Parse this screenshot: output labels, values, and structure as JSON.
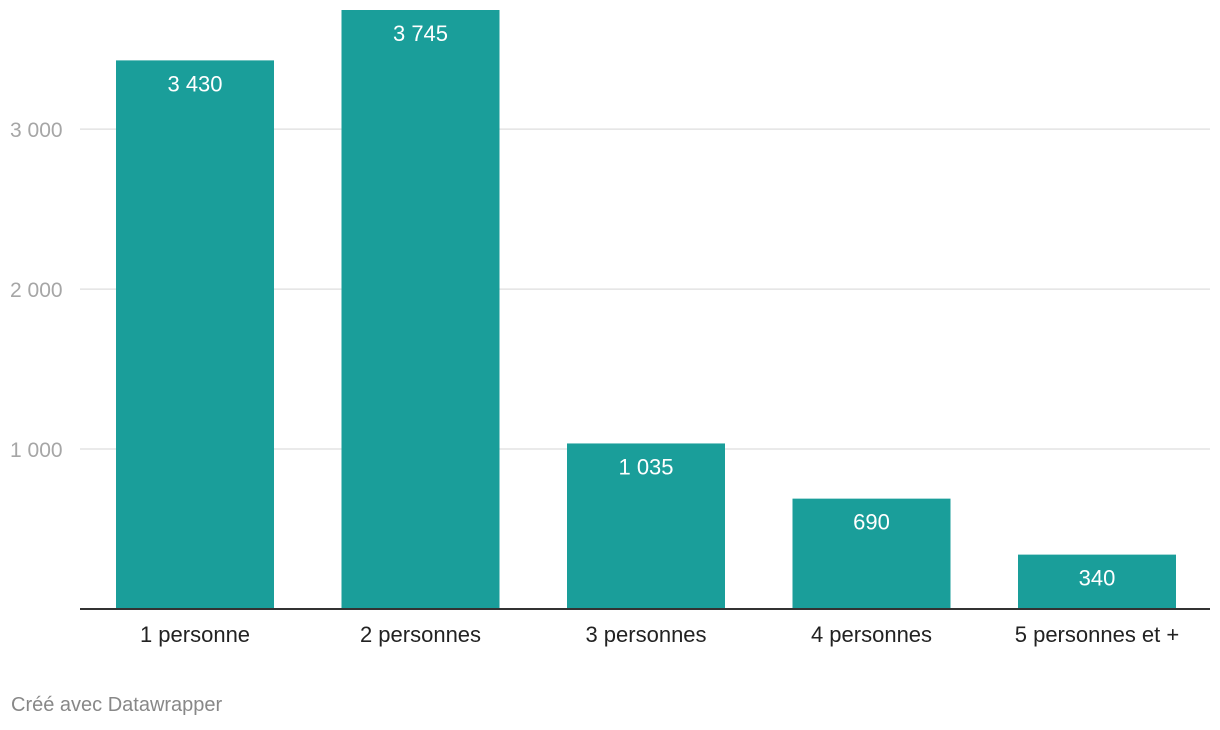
{
  "chart_data": {
    "type": "bar",
    "categories": [
      "1 personne",
      "2 personnes",
      "3 personnes",
      "4 personnes",
      "5 personnes et +"
    ],
    "values": [
      3430,
      3745,
      1035,
      690,
      340
    ],
    "value_labels": [
      "3 430",
      "3 745",
      "1 035",
      "690",
      "340"
    ],
    "title": "",
    "xlabel": "",
    "ylabel": "",
    "ylim": [
      0,
      3745
    ],
    "yticks": [
      1000,
      2000,
      3000
    ],
    "ytick_labels": [
      "1 000",
      "2 000",
      "3 000"
    ],
    "grid": true,
    "legend": "none",
    "colors": {
      "bar": "#1a9e9a",
      "grid": "#e3e3e3",
      "baseline": "#333333",
      "tick_text": "#a6a6a6",
      "category_text": "#222222",
      "value_text": "#ffffff",
      "credit_text": "#888888"
    }
  },
  "footer": {
    "credit": "Créé avec Datawrapper"
  }
}
